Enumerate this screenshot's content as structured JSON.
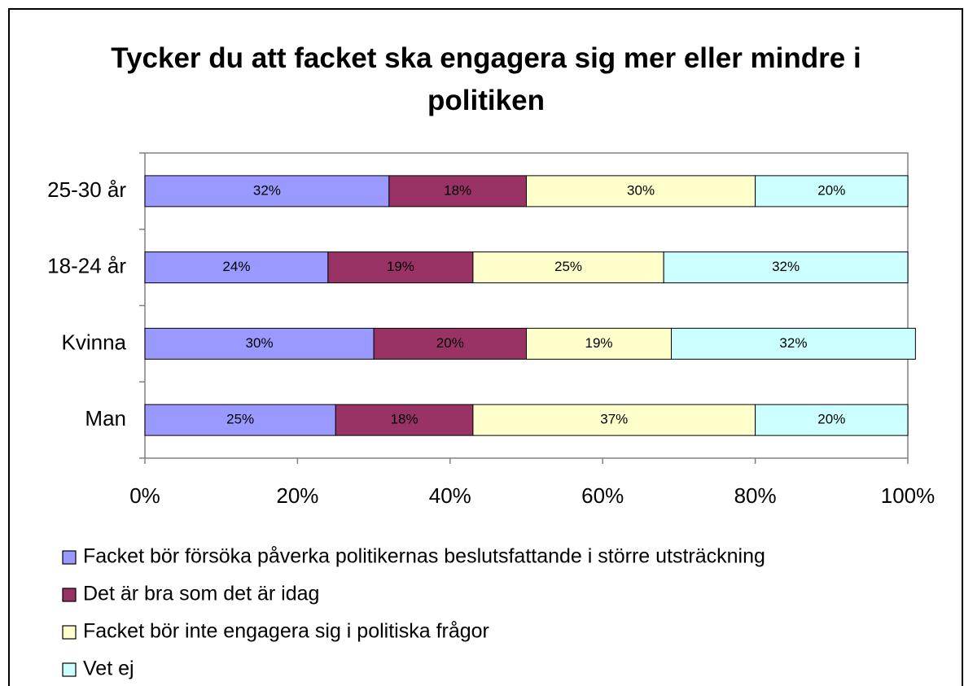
{
  "chart_data": {
    "type": "stacked_barh",
    "title": "Tycker du att facket ska engagera sig mer eller mindre i politiken",
    "categories": [
      "25-30 år",
      "18-24 år",
      "Kvinna",
      "Man"
    ],
    "series": [
      {
        "name": "Facket bör försöka påverka politikernas beslutsfattande i större utsträckning",
        "color": "#9999ff",
        "values": [
          32,
          24,
          30,
          25
        ],
        "value_labels": [
          "32%",
          "24%",
          "30%",
          "25%"
        ]
      },
      {
        "name": "Det är bra som det är idag",
        "color": "#993366",
        "values": [
          18,
          19,
          20,
          18
        ],
        "value_labels": [
          "18%",
          "19%",
          "20%",
          "18%"
        ]
      },
      {
        "name": "Facket bör inte engagera sig i politiska frågor",
        "color": "#ffffcc",
        "values": [
          30,
          25,
          19,
          37
        ],
        "value_labels": [
          "30%",
          "25%",
          "19%",
          "37%"
        ]
      },
      {
        "name": "Vet ej",
        "color": "#ccffff",
        "values": [
          20,
          32,
          32,
          20
        ],
        "value_labels": [
          "20%",
          "32%",
          "32%",
          "20%"
        ]
      }
    ],
    "xlim": [
      0,
      100
    ],
    "xticks": [
      {
        "value": 0,
        "label": "0%"
      },
      {
        "value": 20,
        "label": "20%"
      },
      {
        "value": 40,
        "label": "40%"
      },
      {
        "value": 60,
        "label": "60%"
      },
      {
        "value": 80,
        "label": "80%"
      },
      {
        "value": 100,
        "label": "100%"
      }
    ],
    "legend": "bottom"
  }
}
